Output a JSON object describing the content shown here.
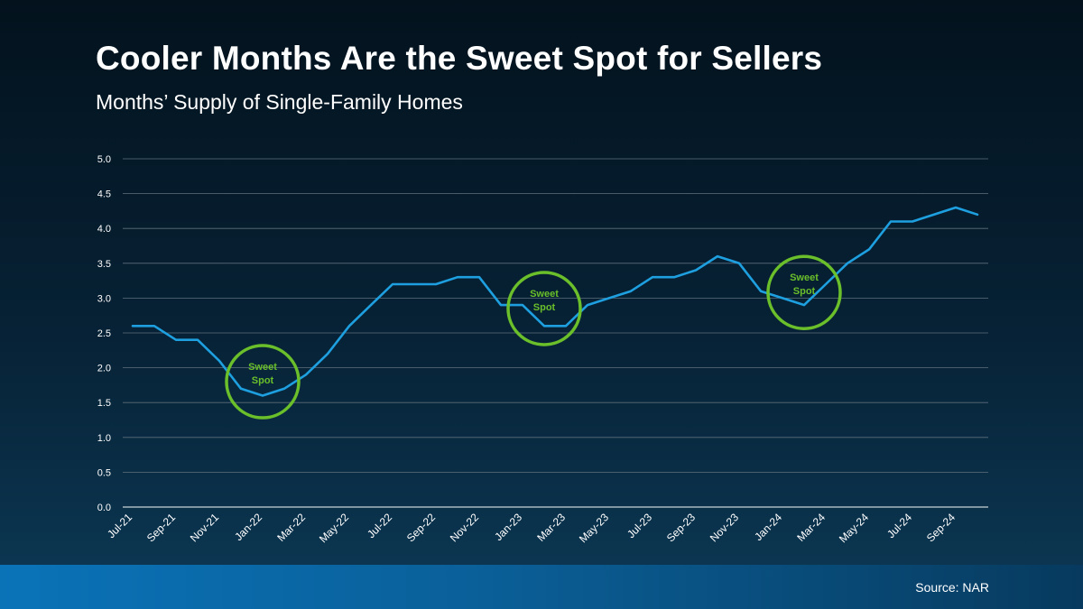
{
  "title": "Cooler Months Are the Sweet Spot for Sellers",
  "subtitle": "Months’ Supply of Single-Family Homes",
  "source": "Source: NAR",
  "colors": {
    "line": "#1ea0e0",
    "circle": "#6abf2a",
    "grid": "#5e6f7c",
    "axis_text": "#ffffff"
  },
  "chart_data": {
    "type": "line",
    "title": "Cooler Months Are the Sweet Spot for Sellers",
    "subtitle": "Months’ Supply of Single-Family Homes",
    "ylim": [
      0,
      5
    ],
    "yticks": [
      "0.0",
      "0.5",
      "1.0",
      "1.5",
      "2.0",
      "2.5",
      "3.0",
      "3.5",
      "4.0",
      "4.5",
      "5.0"
    ],
    "grid": true,
    "xtick_labels": [
      "Jul-21",
      "Sep-21",
      "Nov-21",
      "Jan-22",
      "Mar-22",
      "May-22",
      "Jul-22",
      "Sep-22",
      "Nov-22",
      "Jan-23",
      "Mar-23",
      "May-23",
      "Jul-23",
      "Sep-23",
      "Nov-23",
      "Jan-24",
      "Mar-24",
      "May-24",
      "Jul-24",
      "Sep-24"
    ],
    "x": [
      "Jul-21",
      "Aug-21",
      "Sep-21",
      "Oct-21",
      "Nov-21",
      "Dec-21",
      "Jan-22",
      "Feb-22",
      "Mar-22",
      "Apr-22",
      "May-22",
      "Jun-22",
      "Jul-22",
      "Aug-22",
      "Sep-22",
      "Oct-22",
      "Nov-22",
      "Dec-22",
      "Jan-23",
      "Feb-23",
      "Mar-23",
      "Apr-23",
      "May-23",
      "Jun-23",
      "Jul-23",
      "Aug-23",
      "Sep-23",
      "Oct-23",
      "Nov-23",
      "Dec-23",
      "Jan-24",
      "Feb-24",
      "Mar-24",
      "Apr-24",
      "May-24",
      "Jun-24",
      "Jul-24",
      "Aug-24",
      "Sep-24",
      "Oct-24"
    ],
    "series": [
      {
        "values": [
          2.6,
          2.6,
          2.4,
          2.4,
          2.1,
          1.7,
          1.6,
          1.7,
          1.9,
          2.2,
          2.6,
          2.9,
          3.2,
          3.2,
          3.2,
          3.3,
          3.3,
          2.9,
          2.9,
          2.6,
          2.6,
          2.9,
          3.0,
          3.1,
          3.3,
          3.3,
          3.4,
          3.6,
          3.5,
          3.1,
          3.0,
          2.9,
          3.2,
          3.5,
          3.7,
          4.1,
          4.1,
          4.2,
          4.3,
          4.2
        ]
      }
    ],
    "annotations": [
      {
        "text_line1": "Sweet",
        "text_line2": "Spot",
        "x": "Jan-22",
        "y": 1.8
      },
      {
        "text_line1": "Sweet",
        "text_line2": "Spot",
        "x": "Feb-23",
        "y": 2.85
      },
      {
        "text_line1": "Sweet",
        "text_line2": "Spot",
        "x": "Feb-24",
        "y": 3.08
      }
    ]
  }
}
